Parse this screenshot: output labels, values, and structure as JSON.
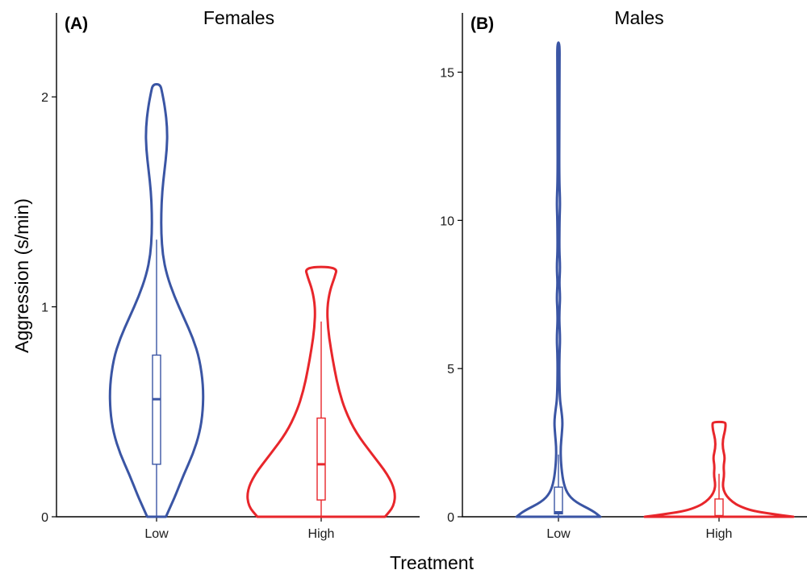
{
  "figure": {
    "xlabel": "Treatment",
    "ylabel": "Aggression (s/min)"
  },
  "colors": {
    "Low": "#3a55a4",
    "High": "#e8262b"
  },
  "chart_data": [
    {
      "type": "violin",
      "panel_tag": "(A)",
      "title": "Females",
      "xlabel": "Treatment",
      "ylabel": "Aggression (s/min)",
      "categories": [
        "Low",
        "High"
      ],
      "ylim": [
        0,
        2.4
      ],
      "yticks": [
        0,
        1,
        2
      ],
      "grid": false,
      "groups": [
        {
          "name": "Low",
          "color": "#3a55a4",
          "box": {
            "min": 0,
            "q1": 0.25,
            "median": 0.56,
            "q3": 0.77,
            "max": 1.32
          },
          "density": [
            {
              "y": 0.0,
              "w": 0.2
            },
            {
              "y": 0.05,
              "w": 0.3
            },
            {
              "y": 0.1,
              "w": 0.4
            },
            {
              "y": 0.2,
              "w": 0.58
            },
            {
              "y": 0.3,
              "w": 0.78
            },
            {
              "y": 0.4,
              "w": 0.92
            },
            {
              "y": 0.5,
              "w": 0.99
            },
            {
              "y": 0.62,
              "w": 1.0
            },
            {
              "y": 0.75,
              "w": 0.92
            },
            {
              "y": 0.85,
              "w": 0.78
            },
            {
              "y": 0.95,
              "w": 0.58
            },
            {
              "y": 1.05,
              "w": 0.38
            },
            {
              "y": 1.15,
              "w": 0.22
            },
            {
              "y": 1.25,
              "w": 0.13
            },
            {
              "y": 1.35,
              "w": 0.1
            },
            {
              "y": 1.45,
              "w": 0.1
            },
            {
              "y": 1.55,
              "w": 0.12
            },
            {
              "y": 1.65,
              "w": 0.17
            },
            {
              "y": 1.75,
              "w": 0.22
            },
            {
              "y": 1.85,
              "w": 0.23
            },
            {
              "y": 1.95,
              "w": 0.18
            },
            {
              "y": 2.02,
              "w": 0.12
            },
            {
              "y": 2.06,
              "w": 0.08
            }
          ]
        },
        {
          "name": "High",
          "color": "#e8262b",
          "box": {
            "min": 0,
            "q1": 0.08,
            "median": 0.25,
            "q3": 0.47,
            "max": 0.93
          },
          "density": [
            {
              "y": 0.0,
              "w": 0.86
            },
            {
              "y": 0.05,
              "w": 0.98
            },
            {
              "y": 0.12,
              "w": 1.0
            },
            {
              "y": 0.2,
              "w": 0.9
            },
            {
              "y": 0.3,
              "w": 0.68
            },
            {
              "y": 0.4,
              "w": 0.47
            },
            {
              "y": 0.5,
              "w": 0.33
            },
            {
              "y": 0.6,
              "w": 0.24
            },
            {
              "y": 0.7,
              "w": 0.18
            },
            {
              "y": 0.8,
              "w": 0.13
            },
            {
              "y": 0.9,
              "w": 0.09
            },
            {
              "y": 1.0,
              "w": 0.08
            },
            {
              "y": 1.08,
              "w": 0.12
            },
            {
              "y": 1.14,
              "w": 0.18
            },
            {
              "y": 1.19,
              "w": 0.22
            }
          ]
        }
      ]
    },
    {
      "type": "violin",
      "panel_tag": "(B)",
      "title": "Males",
      "xlabel": "Treatment",
      "ylabel": "Aggression (s/min)",
      "categories": [
        "Low",
        "High"
      ],
      "ylim": [
        0,
        17
      ],
      "yticks": [
        0,
        5,
        10,
        15
      ],
      "grid": false,
      "groups": [
        {
          "name": "Low",
          "color": "#3a55a4",
          "box": {
            "min": 0,
            "q1": 0.1,
            "median": 0.15,
            "q3": 1.0,
            "max": 2.1
          },
          "density": [
            {
              "y": 0.0,
              "w": 1.0
            },
            {
              "y": 0.2,
              "w": 0.82
            },
            {
              "y": 0.5,
              "w": 0.4
            },
            {
              "y": 0.8,
              "w": 0.2
            },
            {
              "y": 1.2,
              "w": 0.11
            },
            {
              "y": 1.8,
              "w": 0.06
            },
            {
              "y": 2.3,
              "w": 0.05
            },
            {
              "y": 2.8,
              "w": 0.08
            },
            {
              "y": 3.2,
              "w": 0.1
            },
            {
              "y": 3.6,
              "w": 0.07
            },
            {
              "y": 4.0,
              "w": 0.03
            },
            {
              "y": 5.0,
              "w": 0.02
            },
            {
              "y": 5.5,
              "w": 0.025
            },
            {
              "y": 6.0,
              "w": 0.04
            },
            {
              "y": 6.6,
              "w": 0.02
            },
            {
              "y": 7.0,
              "w": 0.025
            },
            {
              "y": 7.4,
              "w": 0.04
            },
            {
              "y": 7.9,
              "w": 0.02
            },
            {
              "y": 8.4,
              "w": 0.04
            },
            {
              "y": 9.0,
              "w": 0.02
            },
            {
              "y": 10.0,
              "w": 0.025
            },
            {
              "y": 10.6,
              "w": 0.04
            },
            {
              "y": 11.3,
              "w": 0.02
            },
            {
              "y": 13.0,
              "w": 0.02
            },
            {
              "y": 15.0,
              "w": 0.025
            },
            {
              "y": 16.0,
              "w": 0.03
            }
          ]
        },
        {
          "name": "High",
          "color": "#e8262b",
          "box": {
            "min": 0,
            "q1": 0.0,
            "median": 0.02,
            "q3": 0.6,
            "max": 1.45
          },
          "density": [
            {
              "y": 0.0,
              "w": 1.0
            },
            {
              "y": 0.1,
              "w": 0.7
            },
            {
              "y": 0.2,
              "w": 0.45
            },
            {
              "y": 0.35,
              "w": 0.28
            },
            {
              "y": 0.5,
              "w": 0.18
            },
            {
              "y": 0.7,
              "w": 0.1
            },
            {
              "y": 0.9,
              "w": 0.06
            },
            {
              "y": 1.1,
              "w": 0.05
            },
            {
              "y": 1.4,
              "w": 0.07
            },
            {
              "y": 1.7,
              "w": 0.06
            },
            {
              "y": 2.0,
              "w": 0.08
            },
            {
              "y": 2.3,
              "w": 0.05
            },
            {
              "y": 2.6,
              "w": 0.05
            },
            {
              "y": 2.9,
              "w": 0.08
            },
            {
              "y": 3.1,
              "w": 0.09
            },
            {
              "y": 3.2,
              "w": 0.08
            }
          ]
        }
      ]
    }
  ]
}
